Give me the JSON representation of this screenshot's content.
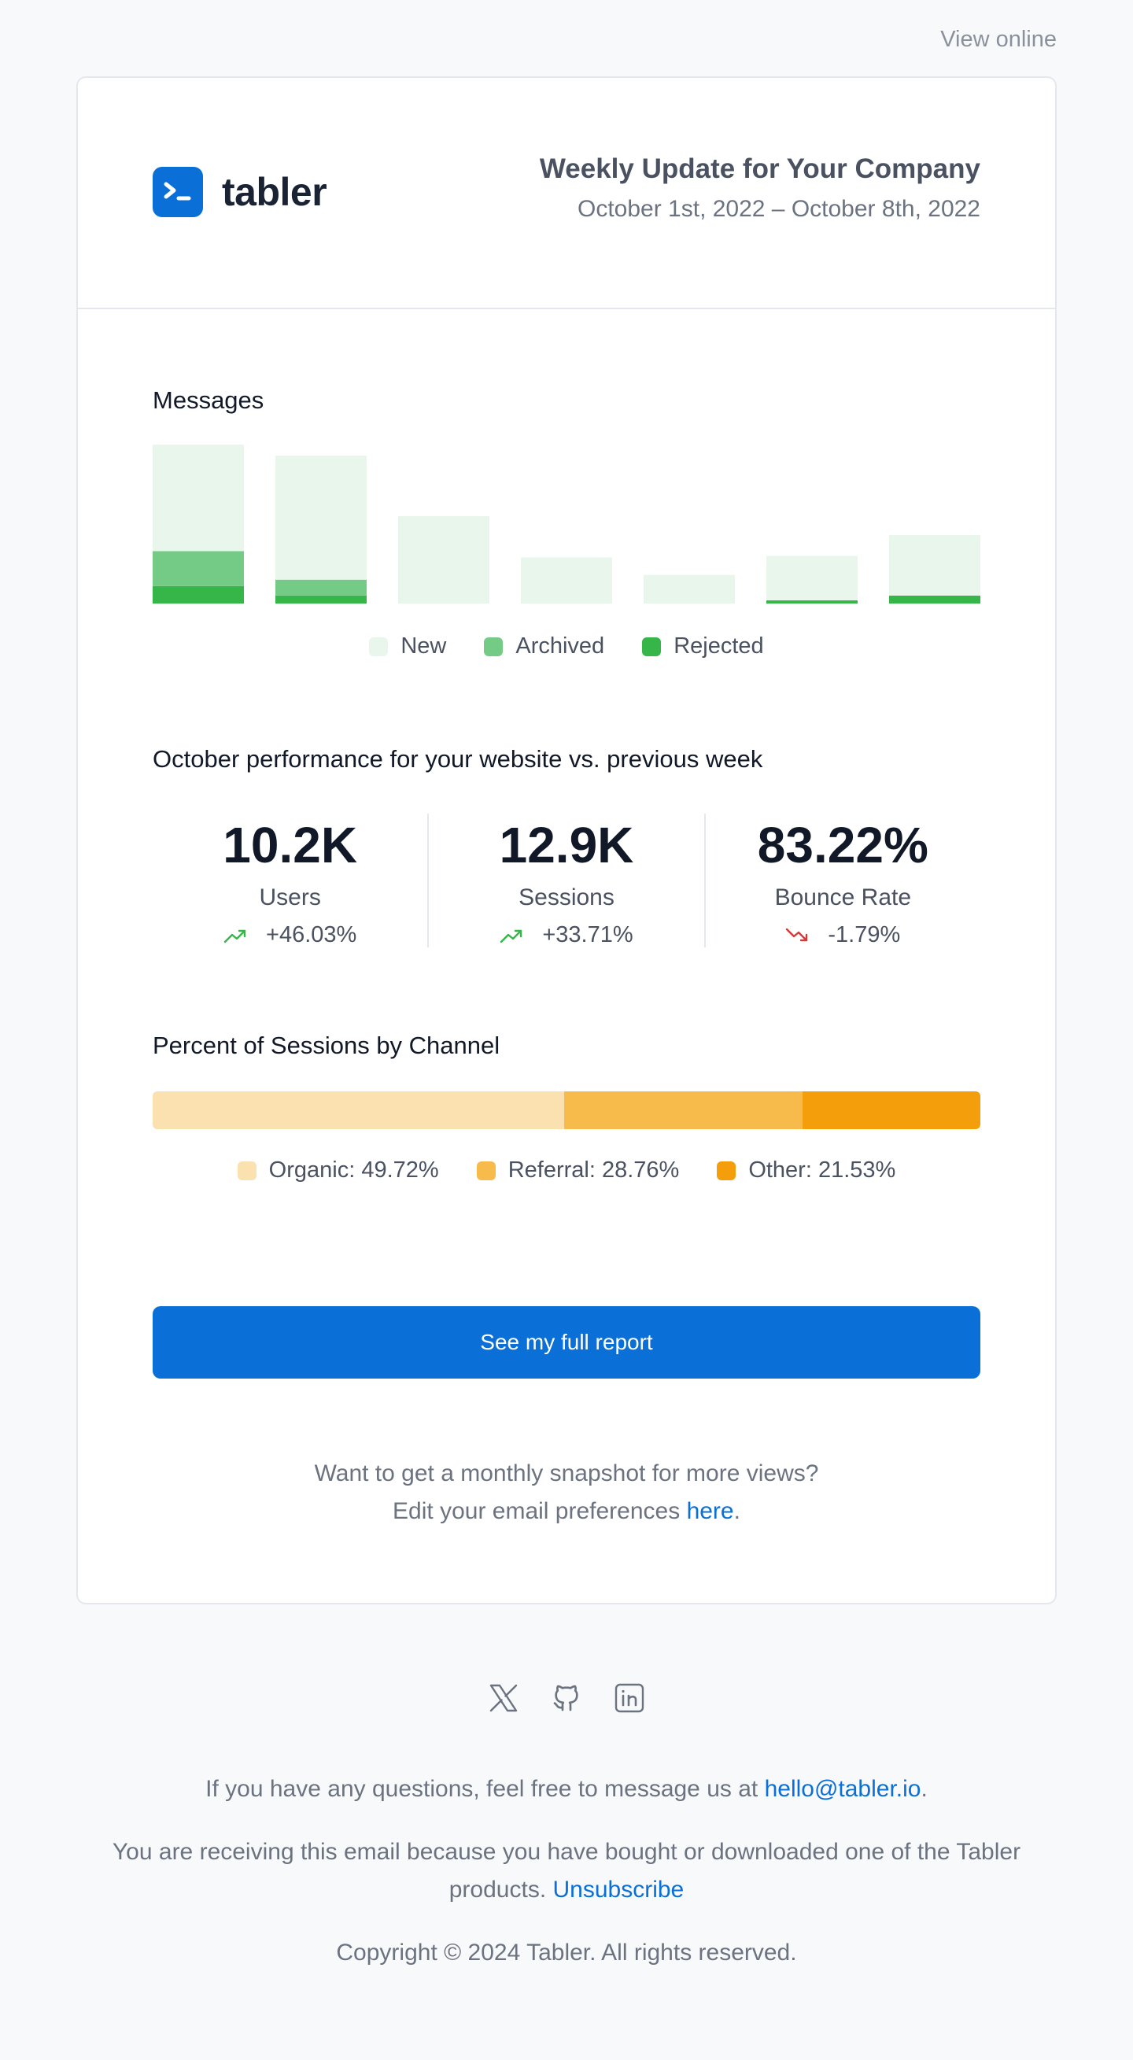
{
  "top": {
    "view_online": "View online"
  },
  "header": {
    "brand": "tabler",
    "title": "Weekly Update for Your Company",
    "date_range": "October 1st, 2022 – October 8th, 2022"
  },
  "messages": {
    "title": "Messages",
    "legend": [
      {
        "label": "New",
        "color": "#e8f6eb"
      },
      {
        "label": "Archived",
        "color": "#74cb85"
      },
      {
        "label": "Rejected",
        "color": "#36b549"
      }
    ]
  },
  "chart_data": {
    "type": "bar",
    "stacked": true,
    "categories": [
      "",
      "",
      "",
      "",
      "",
      "",
      ""
    ],
    "series": [
      {
        "name": "Rejected",
        "color": "#36b549",
        "values": [
          11,
          5,
          0,
          0,
          0,
          2,
          5
        ]
      },
      {
        "name": "Archived",
        "color": "#74cb85",
        "values": [
          22,
          10,
          0,
          0,
          0,
          0,
          0
        ]
      },
      {
        "name": "New",
        "color": "#e8f6eb",
        "values": [
          67,
          78,
          55,
          29,
          18,
          28,
          38
        ]
      }
    ],
    "ylim": [
      0,
      100
    ],
    "grid": false,
    "legend": "bottom-center"
  },
  "performance": {
    "title": "October performance for your website vs. previous week",
    "stats": [
      {
        "value": "10.2K",
        "label": "Users",
        "change": "+46.03%",
        "trend": "up"
      },
      {
        "value": "12.9K",
        "label": "Sessions",
        "change": "+33.71%",
        "trend": "up"
      },
      {
        "value": "83.22%",
        "label": "Bounce Rate",
        "change": "-1.79%",
        "trend": "down"
      }
    ]
  },
  "channels": {
    "title": "Percent of Sessions by Channel",
    "segments": [
      {
        "label": "Organic: 49.72%",
        "percent": 49.72,
        "color": "#fbe0b0"
      },
      {
        "label": "Referral: 28.76%",
        "percent": 28.76,
        "color": "#f7bb4c"
      },
      {
        "label": "Other: 21.53%",
        "percent": 21.53,
        "color": "#f49e0c"
      }
    ]
  },
  "cta": {
    "label": "See my full report"
  },
  "snapshot": {
    "line1": "Want to get a monthly snapshot for more views?",
    "line2_prefix": "Edit your email preferences ",
    "link": "here",
    "line2_suffix": "."
  },
  "footer": {
    "socials": [
      "x-icon",
      "github-icon",
      "linkedin-icon"
    ],
    "questions_prefix": "If you have any questions, feel free to message us at ",
    "email": "hello@tabler.io",
    "questions_suffix": ".",
    "receiving": "You are receiving this email because you have bought or downloaded one of the Tabler products.",
    "unsubscribe": "Unsubscribe",
    "copyright": "Copyright © 2024 Tabler. All rights reserved."
  },
  "colors": {
    "primary": "#0a6fd6",
    "trend_up": "#36b549",
    "trend_down": "#d63939"
  }
}
